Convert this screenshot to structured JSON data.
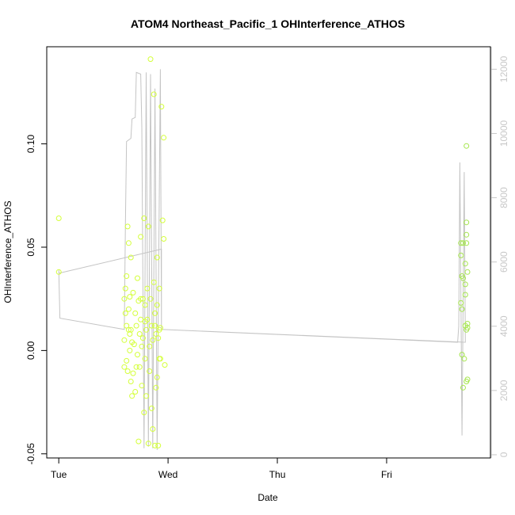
{
  "chart_data": {
    "type": "scatter",
    "title": "ATOM4 Northeast_Pacific_1 OHInterference_ATHOS",
    "xlabel": "Date",
    "ylabel": "OHInterference_ATHOS",
    "x_ticks": [
      "Tue",
      "Wed",
      "Thu",
      "Fri"
    ],
    "x_tick_values": [
      0,
      1,
      2,
      3
    ],
    "xlim": [
      -0.11,
      3.95
    ],
    "ylim": [
      -0.052,
      0.147
    ],
    "y_ticks": [
      -0.05,
      0.0,
      0.05,
      0.1
    ],
    "y_tick_labels": [
      "-0.05",
      "0.00",
      "0.05",
      "0.10"
    ],
    "y2_lim": [
      -100,
      12700
    ],
    "y2_ticks": [
      0,
      2000,
      4000,
      6000,
      8000,
      10000,
      12000
    ],
    "grid": false,
    "legend": "none",
    "colors": {
      "early_points": "#d4ff3a",
      "late_points": "#a6e64e",
      "line": "#c4c4c4"
    },
    "series": [
      {
        "kind": "points",
        "axis": "left",
        "points": [
          [
            0.0,
            0.064
          ],
          [
            0.0,
            0.038
          ],
          [
            0.6,
            0.025
          ],
          [
            0.61,
            0.018
          ],
          [
            0.62,
            0.012
          ],
          [
            0.6,
            0.005
          ],
          [
            0.62,
            -0.005
          ],
          [
            0.63,
            -0.01
          ],
          [
            0.61,
            0.03
          ],
          [
            0.63,
            0.06
          ],
          [
            0.64,
            0.052
          ],
          [
            0.62,
            0.036
          ],
          [
            0.64,
            0.02
          ],
          [
            0.65,
            0.008
          ],
          [
            0.6,
            -0.008
          ],
          [
            0.65,
            0.0
          ],
          [
            0.66,
            -0.015
          ],
          [
            0.67,
            -0.022
          ],
          [
            0.66,
            0.045
          ],
          [
            0.65,
            0.026
          ],
          [
            0.66,
            0.01
          ],
          [
            0.67,
            0.004
          ],
          [
            0.68,
            -0.011
          ],
          [
            0.68,
            0.028
          ],
          [
            0.7,
            -0.02
          ],
          [
            0.7,
            0.018
          ],
          [
            0.71,
            0.012
          ],
          [
            0.72,
            -0.002
          ],
          [
            0.72,
            0.035
          ],
          [
            0.73,
            0.024
          ],
          [
            0.74,
            0.008
          ],
          [
            0.73,
            -0.044
          ],
          [
            0.74,
            -0.008
          ],
          [
            0.75,
            0.055
          ],
          [
            0.75,
            0.015
          ],
          [
            0.76,
            0.002
          ],
          [
            0.76,
            -0.017
          ],
          [
            0.77,
            0.025
          ],
          [
            0.77,
            0.006
          ],
          [
            0.78,
            -0.03
          ],
          [
            0.78,
            0.064
          ],
          [
            0.79,
            0.022
          ],
          [
            0.79,
            -0.004
          ],
          [
            0.8,
            0.01
          ],
          [
            0.8,
            -0.022
          ],
          [
            0.81,
            0.03
          ],
          [
            0.81,
            0.015
          ],
          [
            0.82,
            -0.045
          ],
          [
            0.82,
            0.06
          ],
          [
            0.83,
            0.002
          ],
          [
            0.83,
            -0.01
          ],
          [
            0.84,
            0.141
          ],
          [
            0.84,
            0.025
          ],
          [
            0.85,
            -0.028
          ],
          [
            0.85,
            0.012
          ],
          [
            0.86,
            0.005
          ],
          [
            0.86,
            -0.038
          ],
          [
            0.87,
            0.124
          ],
          [
            0.87,
            0.033
          ],
          [
            0.88,
            -0.046
          ],
          [
            0.88,
            0.018
          ],
          [
            0.89,
            0.008
          ],
          [
            0.89,
            -0.018
          ],
          [
            0.9,
            0.045
          ],
          [
            0.9,
            0.022
          ],
          [
            0.91,
            -0.046
          ],
          [
            0.91,
            0.006
          ],
          [
            0.92,
            0.01
          ],
          [
            0.92,
            0.03
          ],
          [
            0.93,
            -0.004
          ],
          [
            0.94,
            0.118
          ],
          [
            0.95,
            0.063
          ],
          [
            0.96,
            0.054
          ],
          [
            0.96,
            0.103
          ],
          [
            0.97,
            -0.007
          ],
          [
            0.64,
            0.01
          ],
          [
            0.69,
            0.003
          ],
          [
            0.71,
            -0.008
          ],
          [
            0.75,
            0.025
          ],
          [
            0.79,
            0.014
          ],
          [
            0.88,
            0.012
          ],
          [
            0.9,
            -0.013
          ],
          [
            0.93,
            0.011
          ],
          [
            0.92,
            -0.004
          ]
        ]
      },
      {
        "kind": "points",
        "axis": "left",
        "points": [
          [
            3.68,
            0.052
          ],
          [
            3.68,
            0.046
          ],
          [
            3.69,
            0.036
          ],
          [
            3.68,
            0.023
          ],
          [
            3.69,
            0.02
          ],
          [
            3.69,
            -0.002
          ],
          [
            3.7,
            -0.018
          ],
          [
            3.7,
            0.035
          ],
          [
            3.7,
            0.052
          ],
          [
            3.71,
            -0.004
          ],
          [
            3.72,
            0.042
          ],
          [
            3.72,
            0.032
          ],
          [
            3.72,
            0.027
          ],
          [
            3.72,
            0.012
          ],
          [
            3.73,
            0.01
          ],
          [
            3.73,
            -0.015
          ],
          [
            3.73,
            0.056
          ],
          [
            3.73,
            0.099
          ],
          [
            3.73,
            0.062
          ],
          [
            3.73,
            0.052
          ],
          [
            3.74,
            0.038
          ],
          [
            3.74,
            0.013
          ],
          [
            3.74,
            0.011
          ],
          [
            3.74,
            -0.014
          ]
        ]
      },
      {
        "kind": "line",
        "axis": "right",
        "points": [
          [
            0.0,
            5750
          ],
          [
            0.01,
            4250
          ],
          [
            0.6,
            3900
          ],
          [
            0.61,
            7200
          ],
          [
            0.62,
            9750
          ],
          [
            0.66,
            9850
          ],
          [
            0.67,
            10450
          ],
          [
            0.7,
            10500
          ],
          [
            0.71,
            11900
          ],
          [
            0.75,
            11850
          ],
          [
            0.76,
            10200
          ],
          [
            0.78,
            200
          ],
          [
            0.8,
            11900
          ],
          [
            0.82,
            250
          ],
          [
            0.84,
            11850
          ],
          [
            0.86,
            200
          ],
          [
            0.88,
            11400
          ],
          [
            0.9,
            150
          ],
          [
            0.93,
            12000
          ],
          [
            0.94,
            3900
          ],
          [
            3.65,
            3500
          ],
          [
            3.66,
            4000
          ],
          [
            3.67,
            9100
          ],
          [
            3.69,
            600
          ],
          [
            3.71,
            8800
          ],
          [
            3.72,
            3500
          ],
          [
            0.94,
            3900
          ],
          [
            0.94,
            6400
          ],
          [
            0.0,
            5650
          ]
        ]
      }
    ]
  }
}
